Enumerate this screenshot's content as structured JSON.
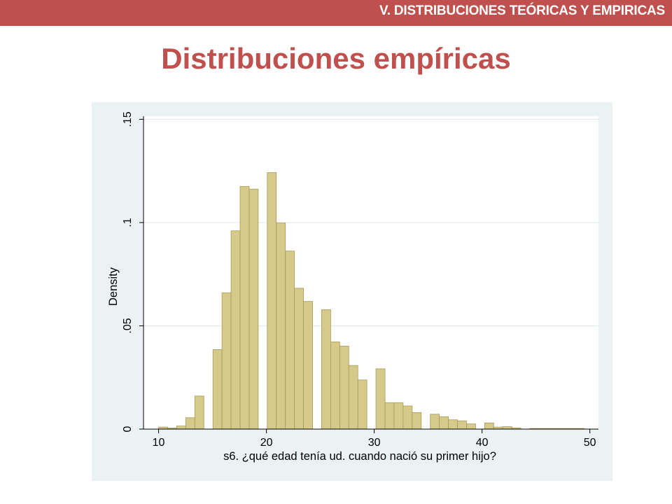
{
  "header": {
    "section_title": "V. DISTRIBUCIONES TEÓRICAS Y EMPIRICAS"
  },
  "slide": {
    "title": "Distribuciones empíricas"
  },
  "colors": {
    "header_bg": "#c0504d",
    "title": "#c0504d",
    "chart_bg": "#eaf2f3",
    "plot_bg": "#ffffff",
    "bar_fill": "#d6ca8a",
    "bar_stroke": "#a89a55",
    "grid": "#e2ebec"
  },
  "chart_data": {
    "type": "bar",
    "subtype": "histogram",
    "xlabel": "s6. ¿qué edad tenía ud. cuando nació su primer hijo?",
    "ylabel": "Density",
    "xlim": [
      8.6,
      50.8
    ],
    "ylim": [
      0,
      0.1515
    ],
    "x_ticks": [
      10,
      20,
      30,
      40,
      50
    ],
    "x_tick_labels": [
      "10",
      "20",
      "30",
      "40",
      "50"
    ],
    "y_ticks": [
      0,
      0.05,
      0.1,
      0.15
    ],
    "y_tick_labels": [
      "0",
      ".05",
      ".1",
      ".15"
    ],
    "grid": true,
    "bin_width": 0.84,
    "bins": [
      {
        "x0": 10.0,
        "value": 0.001
      },
      {
        "x0": 10.84,
        "value": 0.0005
      },
      {
        "x0": 11.68,
        "value": 0.0015
      },
      {
        "x0": 12.52,
        "value": 0.0055
      },
      {
        "x0": 13.36,
        "value": 0.016
      },
      {
        "x0": 15.04,
        "value": 0.0385
      },
      {
        "x0": 15.88,
        "value": 0.066
      },
      {
        "x0": 16.72,
        "value": 0.096
      },
      {
        "x0": 17.56,
        "value": 0.1175
      },
      {
        "x0": 18.4,
        "value": 0.1162
      },
      {
        "x0": 20.08,
        "value": 0.1242
      },
      {
        "x0": 20.92,
        "value": 0.0998
      },
      {
        "x0": 21.76,
        "value": 0.0862
      },
      {
        "x0": 22.6,
        "value": 0.0682
      },
      {
        "x0": 23.44,
        "value": 0.0618
      },
      {
        "x0": 25.12,
        "value": 0.0578
      },
      {
        "x0": 25.96,
        "value": 0.0422
      },
      {
        "x0": 26.8,
        "value": 0.0402
      },
      {
        "x0": 27.64,
        "value": 0.0308
      },
      {
        "x0": 28.48,
        "value": 0.0238
      },
      {
        "x0": 30.16,
        "value": 0.0292
      },
      {
        "x0": 31.0,
        "value": 0.0128
      },
      {
        "x0": 31.84,
        "value": 0.0128
      },
      {
        "x0": 32.68,
        "value": 0.0112
      },
      {
        "x0": 33.52,
        "value": 0.008
      },
      {
        "x0": 35.2,
        "value": 0.0072
      },
      {
        "x0": 36.04,
        "value": 0.006
      },
      {
        "x0": 36.88,
        "value": 0.0045
      },
      {
        "x0": 37.72,
        "value": 0.004
      },
      {
        "x0": 38.56,
        "value": 0.0025
      },
      {
        "x0": 40.24,
        "value": 0.003
      },
      {
        "x0": 41.08,
        "value": 0.001
      },
      {
        "x0": 41.92,
        "value": 0.0012
      },
      {
        "x0": 42.76,
        "value": 0.0006
      },
      {
        "x0": 44.44,
        "value": 0.0003
      },
      {
        "x0": 45.28,
        "value": 0.0003
      },
      {
        "x0": 46.12,
        "value": 0.0003
      },
      {
        "x0": 46.96,
        "value": 0.0003
      },
      {
        "x0": 47.8,
        "value": 0.0003
      },
      {
        "x0": 48.64,
        "value": 0.0003
      }
    ]
  }
}
